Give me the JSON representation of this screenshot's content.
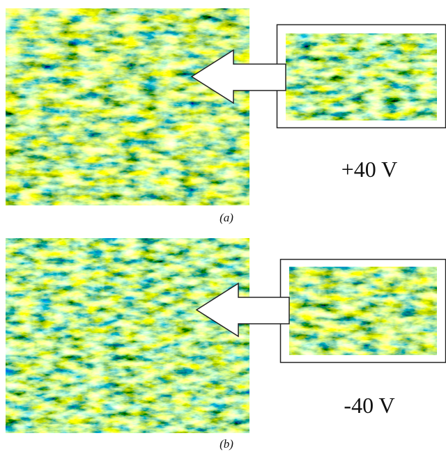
{
  "panels": [
    {
      "label": "+40 V",
      "caption": "(a)"
    },
    {
      "label": "-40 V",
      "caption": "(b)"
    }
  ]
}
